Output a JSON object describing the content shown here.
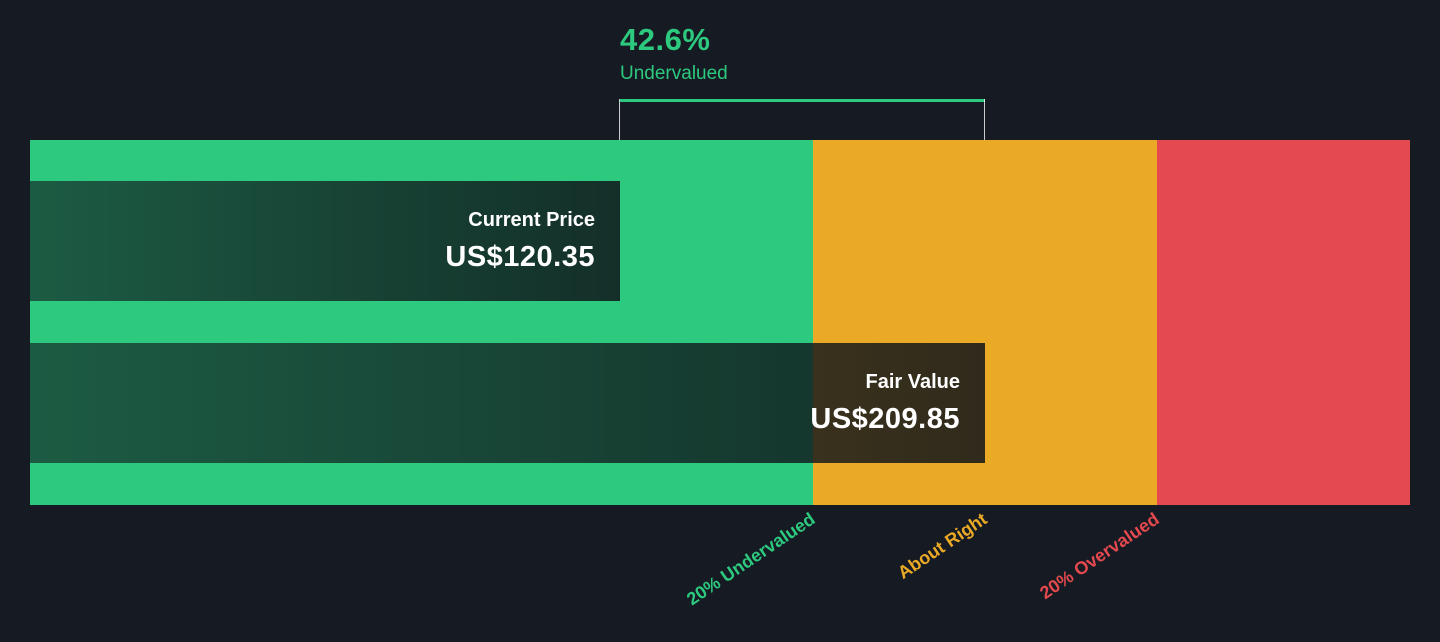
{
  "annotation": {
    "percent": "42.6%",
    "label": "Undervalued"
  },
  "bars": {
    "current": {
      "label": "Current Price",
      "value": "US$120.35"
    },
    "fair": {
      "label": "Fair Value",
      "value": "US$209.85"
    }
  },
  "zones": {
    "undervalued": {
      "label": "20% Undervalued",
      "color": "#2dc97e"
    },
    "about_right": {
      "label": "About Right",
      "color": "#ebaa26"
    },
    "overvalued": {
      "label": "20% Overvalued",
      "color": "#e3494e"
    }
  },
  "colors": {
    "background": "#151a23",
    "accent_green": "#2dc97e",
    "accent_yellow": "#ebaa26",
    "accent_red": "#e3494e",
    "bar_overlay": "rgba(16,21,28,0.75)",
    "text": "#ffffff"
  },
  "chart_data": {
    "type": "bar",
    "orientation": "horizontal",
    "categories": [
      "Current Price",
      "Fair Value"
    ],
    "values": [
      120.35,
      209.85
    ],
    "value_labels": [
      "US$120.35",
      "US$209.85"
    ],
    "currency": "US$",
    "annotation": {
      "percent": 42.6,
      "text": "42.6% Undervalued"
    },
    "zones": [
      {
        "label": "20% Undervalued",
        "color": "#2dc97e"
      },
      {
        "label": "About Right",
        "color": "#ebaa26"
      },
      {
        "label": "20% Overvalued",
        "color": "#e3494e"
      }
    ],
    "grid": false,
    "legend": "none"
  }
}
